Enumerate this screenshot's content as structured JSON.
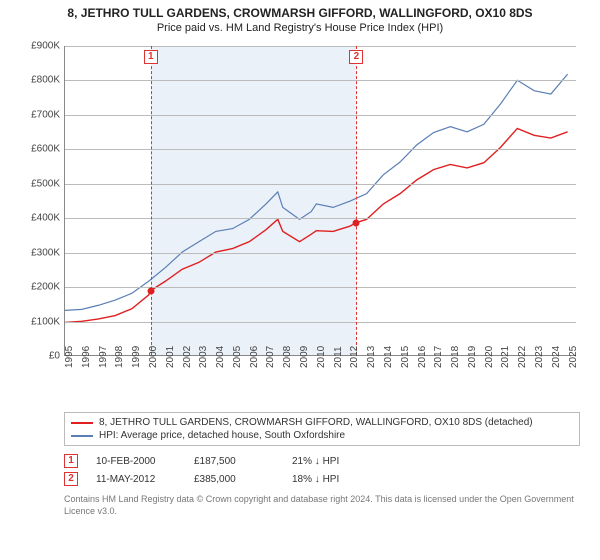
{
  "title": "8, JETHRO TULL GARDENS, CROWMARSH GIFFORD, WALLINGFORD, OX10 8DS",
  "subtitle": "Price paid vs. HM Land Registry's House Price Index (HPI)",
  "chart": {
    "type": "line",
    "xlim": [
      1995,
      2025.5
    ],
    "ylim": [
      0,
      900000
    ],
    "ytick_step": 100000,
    "yticks": [
      "£0",
      "£100K",
      "£200K",
      "£300K",
      "£400K",
      "£500K",
      "£600K",
      "£700K",
      "£800K",
      "£900K"
    ],
    "xticks": [
      1995,
      1996,
      1997,
      1998,
      1999,
      2000,
      2001,
      2002,
      2003,
      2004,
      2005,
      2006,
      2007,
      2008,
      2009,
      2010,
      2011,
      2012,
      2013,
      2014,
      2015,
      2016,
      2017,
      2018,
      2019,
      2020,
      2021,
      2022,
      2023,
      2024,
      2025
    ],
    "grid_color": "#bbbbbb",
    "axis_color": "#888888",
    "background_band": {
      "from_x": 2000.11,
      "to_x": 2012.36,
      "color": "#dbe6f4"
    },
    "series": [
      {
        "name": "property",
        "label": "8, JETHRO TULL GARDENS, CROWMARSH GIFFORD, WALLINGFORD, OX10 8DS (detached)",
        "color": "#e02020",
        "line_width": 1.4,
        "data": [
          [
            1995,
            95000
          ],
          [
            1996,
            98000
          ],
          [
            1997,
            105000
          ],
          [
            1998,
            115000
          ],
          [
            1999,
            135000
          ],
          [
            2000,
            175000
          ],
          [
            2000.11,
            187500
          ],
          [
            2001,
            215000
          ],
          [
            2002,
            250000
          ],
          [
            2003,
            270000
          ],
          [
            2004,
            300000
          ],
          [
            2005,
            310000
          ],
          [
            2006,
            330000
          ],
          [
            2007,
            365000
          ],
          [
            2007.7,
            395000
          ],
          [
            2008,
            360000
          ],
          [
            2009,
            330000
          ],
          [
            2009.7,
            352000
          ],
          [
            2010,
            362000
          ],
          [
            2011,
            360000
          ],
          [
            2012,
            375000
          ],
          [
            2012.36,
            385000
          ],
          [
            2013,
            395000
          ],
          [
            2014,
            440000
          ],
          [
            2015,
            470000
          ],
          [
            2016,
            510000
          ],
          [
            2017,
            540000
          ],
          [
            2018,
            555000
          ],
          [
            2019,
            545000
          ],
          [
            2020,
            560000
          ],
          [
            2021,
            605000
          ],
          [
            2022,
            660000
          ],
          [
            2023,
            640000
          ],
          [
            2024,
            632000
          ],
          [
            2025,
            650000
          ]
        ]
      },
      {
        "name": "hpi",
        "label": "HPI: Average price, detached house, South Oxfordshire",
        "color": "#5b7fb5",
        "line_width": 1.2,
        "data": [
          [
            1995,
            130000
          ],
          [
            1996,
            133000
          ],
          [
            1997,
            145000
          ],
          [
            1998,
            160000
          ],
          [
            1999,
            180000
          ],
          [
            2000,
            215000
          ],
          [
            2001,
            255000
          ],
          [
            2002,
            300000
          ],
          [
            2003,
            330000
          ],
          [
            2004,
            360000
          ],
          [
            2005,
            368000
          ],
          [
            2006,
            395000
          ],
          [
            2007,
            440000
          ],
          [
            2007.7,
            475000
          ],
          [
            2008,
            430000
          ],
          [
            2009,
            395000
          ],
          [
            2009.7,
            418000
          ],
          [
            2010,
            440000
          ],
          [
            2011,
            430000
          ],
          [
            2012,
            448000
          ],
          [
            2013,
            470000
          ],
          [
            2014,
            525000
          ],
          [
            2015,
            562000
          ],
          [
            2016,
            612000
          ],
          [
            2017,
            648000
          ],
          [
            2018,
            665000
          ],
          [
            2019,
            650000
          ],
          [
            2020,
            672000
          ],
          [
            2021,
            732000
          ],
          [
            2022,
            800000
          ],
          [
            2023,
            770000
          ],
          [
            2024,
            760000
          ],
          [
            2025,
            818000
          ]
        ]
      }
    ],
    "markers": [
      {
        "id": "1",
        "x": 2000.11,
        "y": 187500,
        "dot_color": "#e02020"
      },
      {
        "id": "2",
        "x": 2012.36,
        "y": 385000,
        "dot_color": "#e02020"
      }
    ]
  },
  "legend": {
    "rows": [
      {
        "color": "#e02020",
        "text": "8, JETHRO TULL GARDENS, CROWMARSH GIFFORD, WALLINGFORD, OX10 8DS (detached)"
      },
      {
        "color": "#5b7fb5",
        "text": "HPI: Average price, detached house, South Oxfordshire"
      }
    ]
  },
  "sales": [
    {
      "id": "1",
      "date": "10-FEB-2000",
      "price": "£187,500",
      "delta": "21% ↓ HPI"
    },
    {
      "id": "2",
      "date": "11-MAY-2012",
      "price": "£385,000",
      "delta": "18% ↓ HPI"
    }
  ],
  "attribution": "Contains HM Land Registry data © Crown copyright and database right 2024. This data is licensed under the Open Government Licence v3.0."
}
